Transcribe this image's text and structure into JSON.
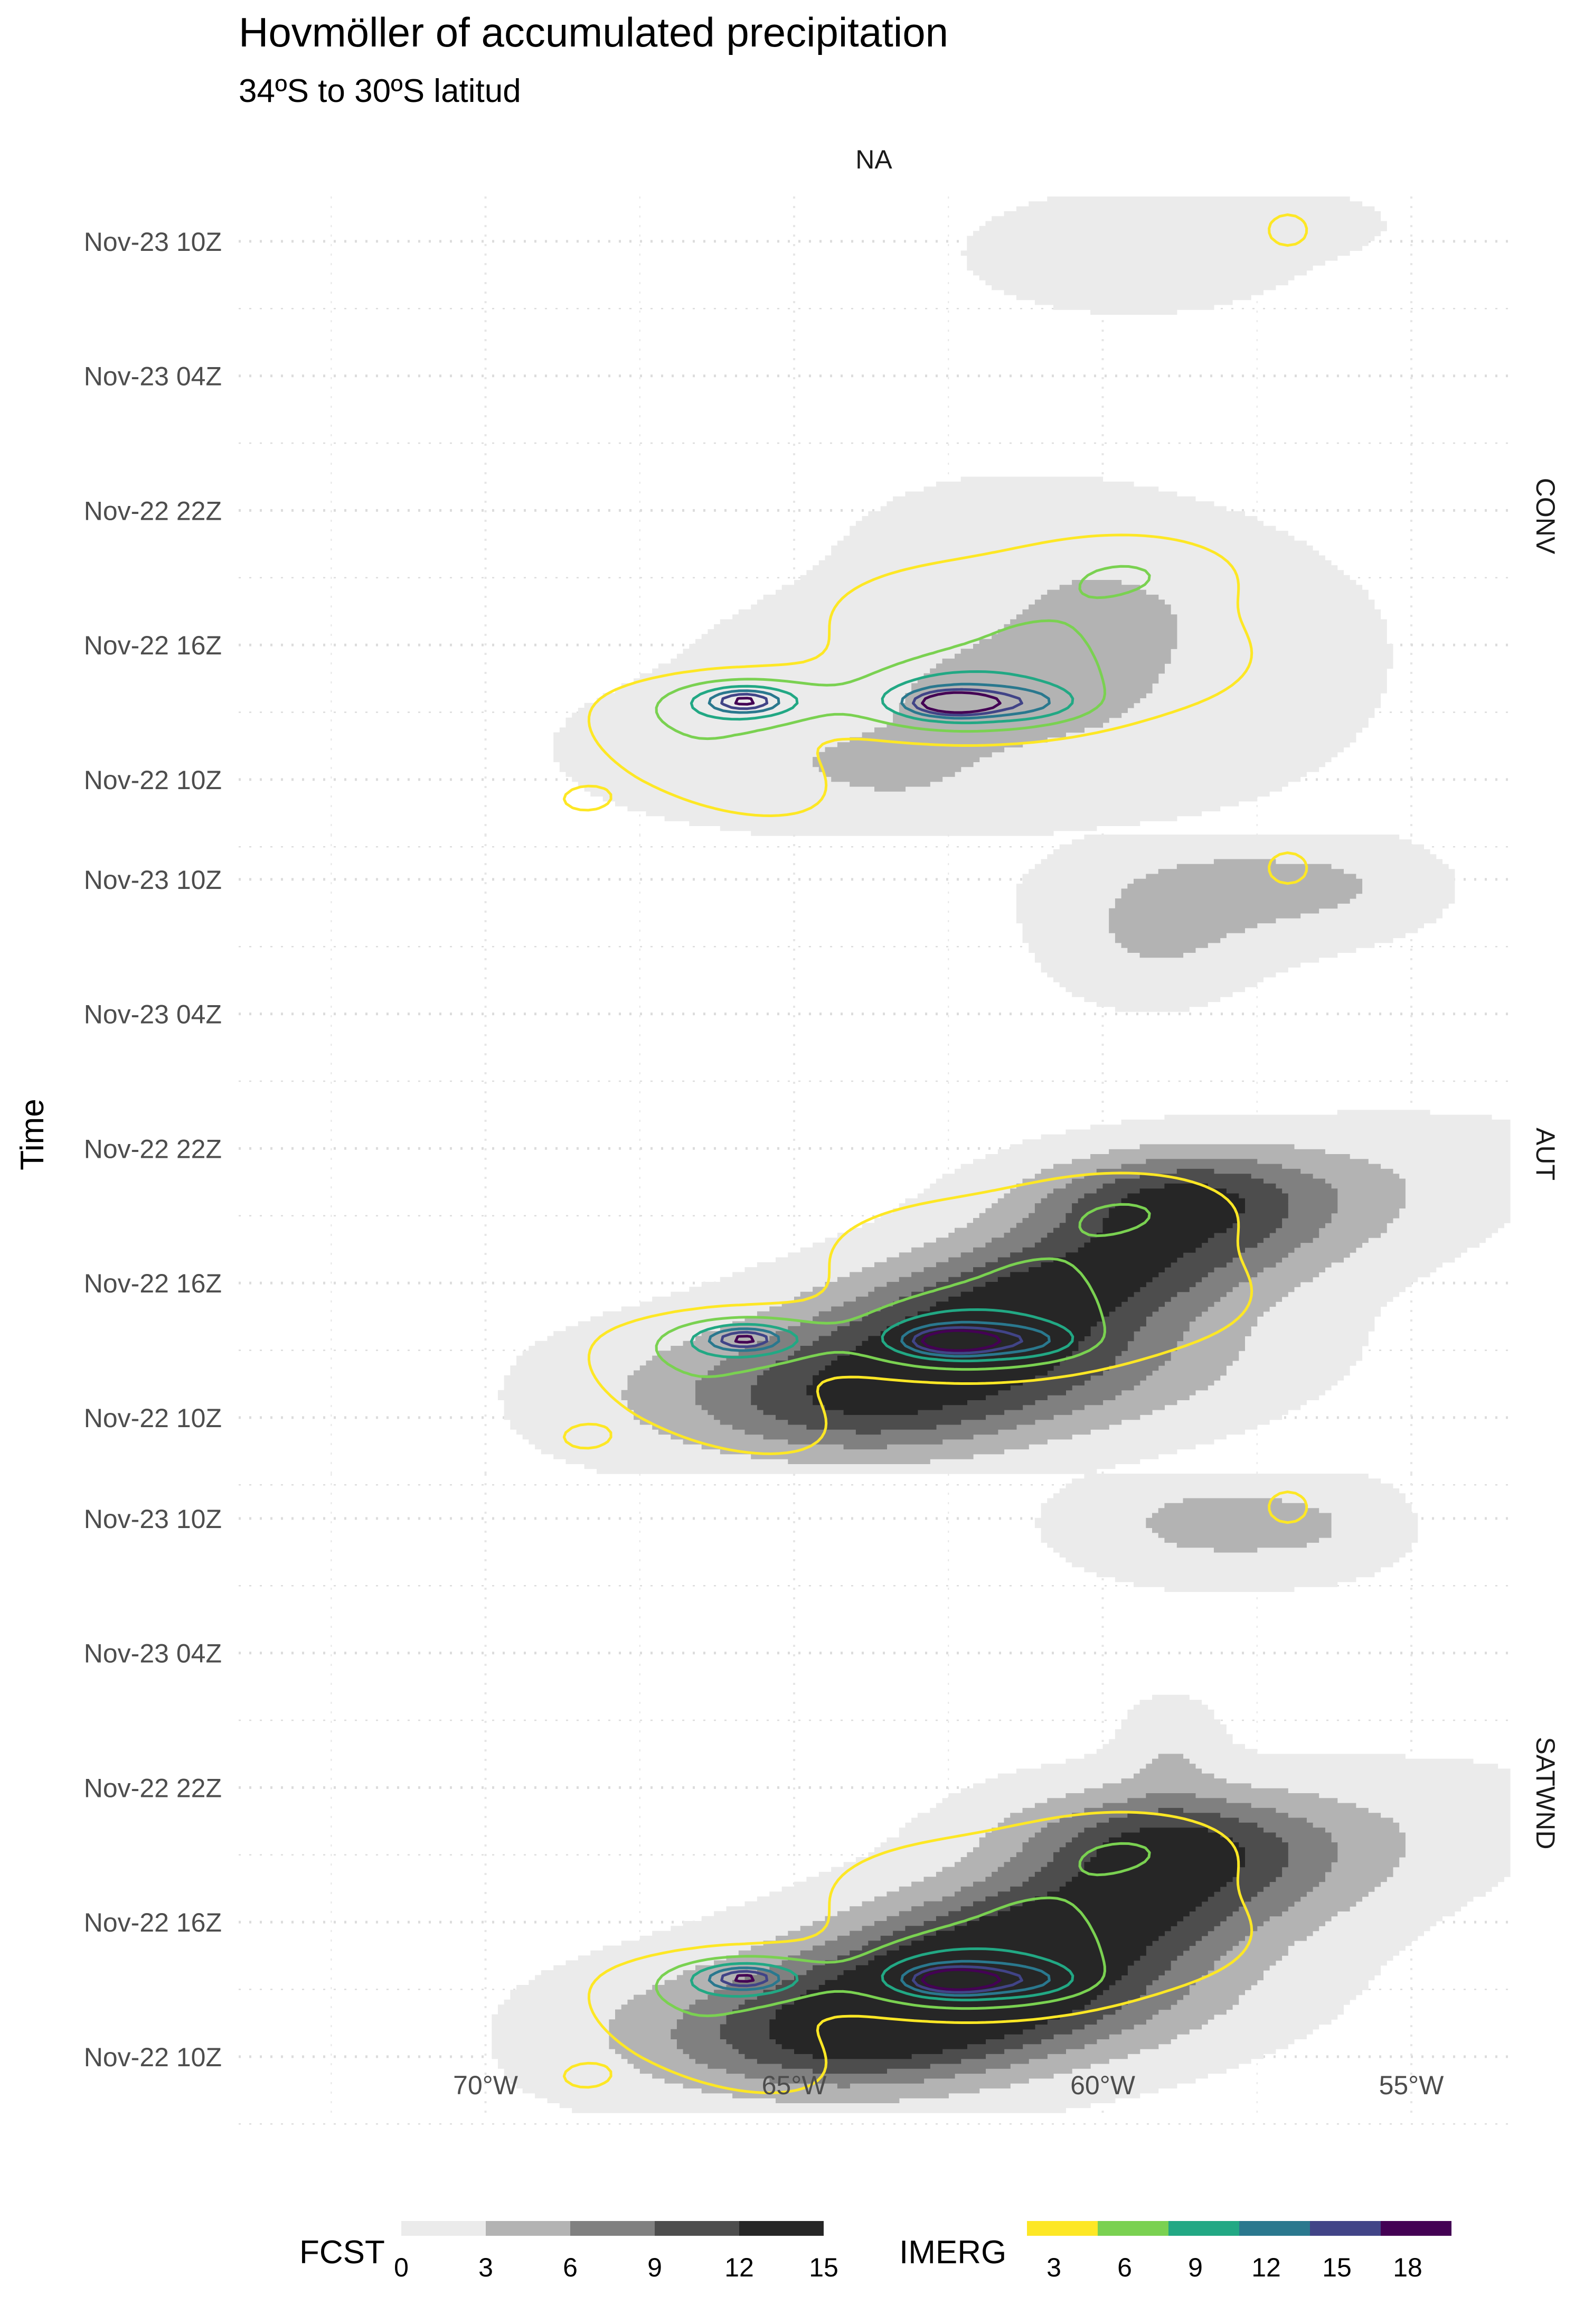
{
  "chart_data": {
    "type": "hovmoller-contour",
    "title": "Hovmöller of accumulated precipitation",
    "subtitle": "34ºS to 30ºS latitud",
    "ylabel": "Time",
    "column_strip": "NA",
    "x_axis": {
      "ticks": [
        -70,
        -65,
        -60,
        -55
      ],
      "tick_labels": [
        "70°W",
        "65°W",
        "60°W",
        "55°W"
      ],
      "xlim": [
        -74,
        -53.4
      ]
    },
    "y_axis": {
      "unit": "hours since Nov-22 00Z",
      "ticks": [
        10,
        16,
        22,
        28,
        34
      ],
      "tick_labels": [
        "Nov-22 10Z",
        "Nov-22 16Z",
        "Nov-22 22Z",
        "Nov-23 04Z",
        "Nov-23 10Z"
      ],
      "ylim": [
        7.5,
        36
      ]
    },
    "panels": [
      {
        "name": "CONV",
        "fcst_blobs": [
          {
            "lon": -59.5,
            "t": 33.5,
            "sx": 1.6,
            "sy": 1.6,
            "amp": 2.2,
            "rot": 0
          },
          {
            "lon": -57.2,
            "t": 34.8,
            "sx": 1.1,
            "sy": 0.9,
            "amp": 1.6,
            "rot": 0
          },
          {
            "lon": -61.5,
            "t": 13.5,
            "sx": 2.6,
            "sy": 3.0,
            "amp": 3.4,
            "rot": 0.6
          },
          {
            "lon": -59.8,
            "t": 18.5,
            "sx": 2.0,
            "sy": 3.0,
            "amp": 2.6,
            "rot": 0.5
          },
          {
            "lon": -66.2,
            "t": 11.0,
            "sx": 1.6,
            "sy": 1.8,
            "amp": 1.8,
            "rot": 0.4
          },
          {
            "lon": -63.4,
            "t": 9.8,
            "sx": 1.3,
            "sy": 1.5,
            "amp": 1.8,
            "rot": 0
          }
        ],
        "imerg_blobs": [
          {
            "lon": -62.4,
            "t": 13.5,
            "sx": 1.3,
            "sy": 1.1,
            "amp": 9,
            "rot": 0
          },
          {
            "lon": -62.4,
            "t": 13.4,
            "sx": 0.45,
            "sy": 0.35,
            "amp": 14,
            "rot": 0
          },
          {
            "lon": -61.0,
            "t": 16.3,
            "sx": 2.6,
            "sy": 3.2,
            "amp": 6.0,
            "rot": 0.75
          },
          {
            "lon": -59.4,
            "t": 19.5,
            "sx": 1.2,
            "sy": 1.2,
            "amp": 3.5,
            "rot": 0
          },
          {
            "lon": -61.2,
            "t": 13.4,
            "sx": 0.6,
            "sy": 0.5,
            "amp": 4.5,
            "rot": 0
          },
          {
            "lon": -65.8,
            "t": 13.5,
            "sx": 0.9,
            "sy": 0.8,
            "amp": 8.5,
            "rot": 0
          },
          {
            "lon": -65.8,
            "t": 13.5,
            "sx": 0.35,
            "sy": 0.3,
            "amp": 8,
            "rot": 0
          },
          {
            "lon": -66.4,
            "t": 11.0,
            "sx": 1.3,
            "sy": 2.6,
            "amp": 5.5,
            "rot": 0.5
          },
          {
            "lon": -68.4,
            "t": 9.1,
            "sx": 0.35,
            "sy": 0.5,
            "amp": 4,
            "rot": 0
          },
          {
            "lon": -57.0,
            "t": 34.5,
            "sx": 0.45,
            "sy": 1.0,
            "amp": 3.8,
            "rot": 0
          }
        ]
      },
      {
        "name": "AUT",
        "fcst_blobs": [
          {
            "lon": -60.6,
            "t": 16.0,
            "sx": 4.0,
            "sy": 1.6,
            "amp": 13,
            "rot": 0.75
          },
          {
            "lon": -61.8,
            "t": 11.8,
            "sx": 2.6,
            "sy": 1.8,
            "amp": 10,
            "rot": 0.5
          },
          {
            "lon": -59.0,
            "t": 20.0,
            "sx": 1.6,
            "sy": 1.3,
            "amp": 9,
            "rot": 0.5
          },
          {
            "lon": -64.0,
            "t": 10.0,
            "sx": 1.6,
            "sy": 1.4,
            "amp": 4,
            "rot": 0
          },
          {
            "lon": -66.3,
            "t": 11.5,
            "sx": 1.8,
            "sy": 1.9,
            "amp": 2,
            "rot": 0.4
          },
          {
            "lon": -58.0,
            "t": 33.5,
            "sx": 1.6,
            "sy": 1.6,
            "amp": 4,
            "rot": 0
          },
          {
            "lon": -59.2,
            "t": 31.0,
            "sx": 1.0,
            "sy": 1.6,
            "amp": 2.6,
            "rot": 0
          },
          {
            "lon": -56.0,
            "t": 33.8,
            "sx": 0.9,
            "sy": 1.2,
            "amp": 1.5,
            "rot": 0
          }
        ],
        "imerg_blobs": [
          {
            "lon": -62.4,
            "t": 13.5,
            "sx": 1.3,
            "sy": 1.1,
            "amp": 9,
            "rot": 0
          },
          {
            "lon": -62.4,
            "t": 13.4,
            "sx": 0.45,
            "sy": 0.35,
            "amp": 14,
            "rot": 0
          },
          {
            "lon": -61.0,
            "t": 16.3,
            "sx": 2.6,
            "sy": 3.2,
            "amp": 6.0,
            "rot": 0.75
          },
          {
            "lon": -59.4,
            "t": 19.5,
            "sx": 1.2,
            "sy": 1.2,
            "amp": 3.5,
            "rot": 0
          },
          {
            "lon": -61.2,
            "t": 13.4,
            "sx": 0.6,
            "sy": 0.5,
            "amp": 4.5,
            "rot": 0
          },
          {
            "lon": -65.8,
            "t": 13.5,
            "sx": 0.9,
            "sy": 0.8,
            "amp": 8.5,
            "rot": 0
          },
          {
            "lon": -65.8,
            "t": 13.5,
            "sx": 0.35,
            "sy": 0.3,
            "amp": 8,
            "rot": 0
          },
          {
            "lon": -66.4,
            "t": 11.0,
            "sx": 1.3,
            "sy": 2.6,
            "amp": 5.5,
            "rot": 0.5
          },
          {
            "lon": -68.4,
            "t": 9.1,
            "sx": 0.35,
            "sy": 0.5,
            "amp": 4,
            "rot": 0
          },
          {
            "lon": -57.0,
            "t": 34.5,
            "sx": 0.45,
            "sy": 1.0,
            "amp": 3.8,
            "rot": 0
          }
        ]
      },
      {
        "name": "SATWND",
        "fcst_blobs": [
          {
            "lon": -60.8,
            "t": 15.6,
            "sx": 4.0,
            "sy": 1.7,
            "amp": 14,
            "rot": 0.75
          },
          {
            "lon": -62.0,
            "t": 12.0,
            "sx": 2.6,
            "sy": 1.8,
            "amp": 11,
            "rot": 0.5
          },
          {
            "lon": -59.2,
            "t": 19.8,
            "sx": 1.6,
            "sy": 1.5,
            "amp": 9,
            "rot": 0.5
          },
          {
            "lon": -64.2,
            "t": 10.2,
            "sx": 1.6,
            "sy": 1.4,
            "amp": 4,
            "rot": 0
          },
          {
            "lon": -66.4,
            "t": 11.5,
            "sx": 1.8,
            "sy": 1.9,
            "amp": 2,
            "rot": 0.4
          },
          {
            "lon": -58.2,
            "t": 33.8,
            "sx": 1.4,
            "sy": 1.5,
            "amp": 4,
            "rot": 0
          },
          {
            "lon": -58.9,
            "t": 23.5,
            "sx": 0.5,
            "sy": 1.5,
            "amp": 2.5,
            "rot": 0
          },
          {
            "lon": -56.4,
            "t": 33.6,
            "sx": 0.8,
            "sy": 1.3,
            "amp": 1.5,
            "rot": 0
          }
        ],
        "imerg_blobs": [
          {
            "lon": -62.4,
            "t": 13.5,
            "sx": 1.3,
            "sy": 1.1,
            "amp": 9,
            "rot": 0
          },
          {
            "lon": -62.4,
            "t": 13.4,
            "sx": 0.45,
            "sy": 0.35,
            "amp": 14,
            "rot": 0
          },
          {
            "lon": -61.0,
            "t": 16.3,
            "sx": 2.6,
            "sy": 3.2,
            "amp": 6.0,
            "rot": 0.75
          },
          {
            "lon": -59.4,
            "t": 19.5,
            "sx": 1.2,
            "sy": 1.2,
            "amp": 3.5,
            "rot": 0
          },
          {
            "lon": -61.2,
            "t": 13.4,
            "sx": 0.6,
            "sy": 0.5,
            "amp": 4.5,
            "rot": 0
          },
          {
            "lon": -65.8,
            "t": 13.5,
            "sx": 0.9,
            "sy": 0.8,
            "amp": 8.5,
            "rot": 0
          },
          {
            "lon": -65.8,
            "t": 13.5,
            "sx": 0.35,
            "sy": 0.3,
            "amp": 8,
            "rot": 0
          },
          {
            "lon": -66.4,
            "t": 11.0,
            "sx": 1.3,
            "sy": 2.6,
            "amp": 5.5,
            "rot": 0.5
          },
          {
            "lon": -68.4,
            "t": 9.1,
            "sx": 0.35,
            "sy": 0.5,
            "amp": 4,
            "rot": 0
          },
          {
            "lon": -57.0,
            "t": 34.5,
            "sx": 0.45,
            "sy": 1.0,
            "amp": 3.8,
            "rot": 0
          }
        ]
      }
    ],
    "fcst_legend": {
      "name": "FCST",
      "levels": [
        0,
        3,
        6,
        9,
        12,
        15
      ],
      "colors": [
        "#ebebeb",
        "#b3b3b3",
        "#808080",
        "#4d4d4d",
        "#262626"
      ]
    },
    "imerg_legend": {
      "name": "IMERG",
      "levels": [
        3,
        6,
        9,
        12,
        15,
        18
      ],
      "colors": [
        "#fde725",
        "#7ad151",
        "#22a884",
        "#2a788e",
        "#414487",
        "#440154"
      ]
    },
    "grid": true,
    "legend_position": "bottom"
  }
}
